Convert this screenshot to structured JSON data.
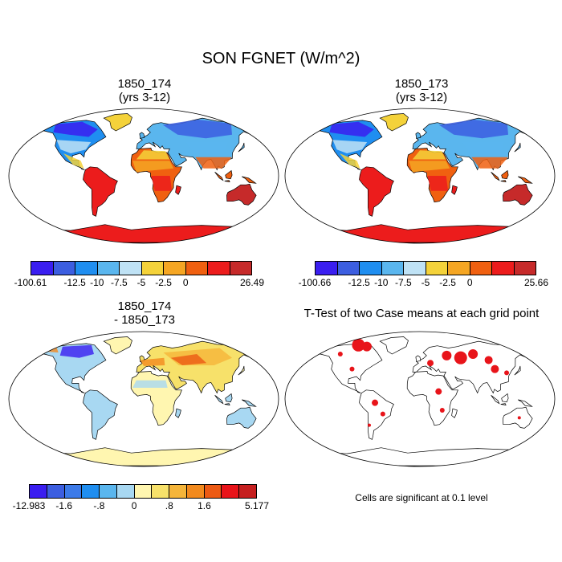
{
  "chart_data": {
    "type": "map",
    "title": "SON FGNET (W/m^2)",
    "panels": [
      {
        "id": "case1",
        "title_line1": "1850_174",
        "title_line2": "(yrs 3-12)",
        "colorbar": {
          "colors": [
            "#3a1ef0",
            "#3c5ee0",
            "#1f8ef0",
            "#5ab6ee",
            "#bfe2f5",
            "#f4d23a",
            "#f5a623",
            "#f06010",
            "#ec1c1c",
            "#c62a2a"
          ],
          "labels": [
            "-100.61",
            "-12.5",
            "-10",
            "-7.5",
            "-5",
            "-2.5",
            "0",
            "26.49"
          ]
        }
      },
      {
        "id": "case2",
        "title_line1": "1850_173",
        "title_line2": "(yrs 3-12)",
        "colorbar": {
          "colors": [
            "#3a1ef0",
            "#3c5ee0",
            "#1f8ef0",
            "#5ab6ee",
            "#bfe2f5",
            "#f4d23a",
            "#f5a623",
            "#f06010",
            "#ec1c1c",
            "#c62a2a"
          ],
          "labels": [
            "-100.66",
            "-12.5",
            "-10",
            "-7.5",
            "-5",
            "-2.5",
            "0",
            "25.66"
          ]
        }
      },
      {
        "id": "diff",
        "title_line1": "1850_174",
        "title_line2": "- 1850_173",
        "colorbar": {
          "colors": [
            "#3a1ef0",
            "#3c5ee0",
            "#3c7ae8",
            "#1f8ef0",
            "#5ab6ee",
            "#a8d8f2",
            "#fff6b0",
            "#f7e16a",
            "#f5b53a",
            "#f28a1e",
            "#ec5a14",
            "#e8141a",
            "#c62020"
          ],
          "labels": [
            "-12.983",
            "-1.6",
            "-.8",
            "0",
            ".8",
            "1.6",
            "5.177"
          ]
        }
      },
      {
        "id": "ttest",
        "title_line1": "T-Test of two Case means at each grid point",
        "note": "Cells are significant at 0.1 level",
        "significant_color": "#e8141a"
      }
    ]
  }
}
